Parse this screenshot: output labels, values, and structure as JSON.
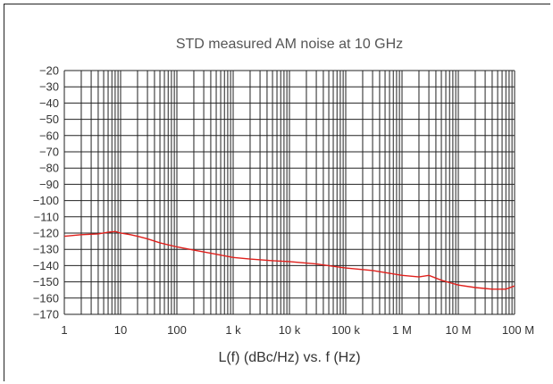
{
  "chart_data": {
    "type": "line",
    "title": "STD measured AM noise at 10 GHz",
    "xlabel": "L(f) (dBc/Hz) vs. f (Hz)",
    "ylabel": "",
    "x_scale": "log",
    "xlim": [
      1,
      100000000
    ],
    "ylim": [
      -170,
      -20
    ],
    "x_ticks": [
      {
        "value": 1,
        "label": "1"
      },
      {
        "value": 10,
        "label": "10"
      },
      {
        "value": 100,
        "label": "100"
      },
      {
        "value": 1000,
        "label": "1 k"
      },
      {
        "value": 10000,
        "label": "10 k"
      },
      {
        "value": 100000,
        "label": "100 k"
      },
      {
        "value": 1000000,
        "label": "1 M"
      },
      {
        "value": 10000000,
        "label": "10 M"
      },
      {
        "value": 100000000,
        "label": "100 M"
      }
    ],
    "y_ticks": [
      -20,
      -30,
      -40,
      -50,
      -60,
      -70,
      -80,
      -90,
      -100,
      -110,
      -120,
      -130,
      -140,
      -150,
      -160,
      -170
    ],
    "grid": true,
    "line_color": "#e0201c",
    "series": [
      {
        "x": [
          1,
          2,
          4,
          6,
          8,
          10,
          15,
          20,
          30,
          50,
          100,
          200,
          500,
          1000,
          2000,
          5000,
          10000,
          30000,
          100000,
          300000,
          1000000,
          2000000,
          3000000,
          5000000,
          10000000,
          20000000,
          40000000,
          70000000,
          100000000
        ],
        "y": [
          -122,
          -121,
          -120.5,
          -119.5,
          -119,
          -120,
          -121,
          -122,
          -123.5,
          -126,
          -128.5,
          -130.5,
          -133,
          -135,
          -136,
          -137,
          -137.5,
          -139,
          -141.5,
          -143,
          -146,
          -147,
          -146,
          -149,
          -152,
          -153.5,
          -154.5,
          -154.5,
          -152.5
        ]
      }
    ]
  }
}
